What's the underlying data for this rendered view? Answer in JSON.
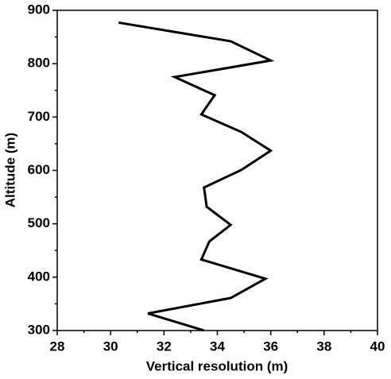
{
  "chart_data": {
    "type": "line",
    "x_label": "Vertical resolution (m)",
    "y_label": "Altitude (m)",
    "x": [
      30.3,
      34.5,
      36.0,
      32.4,
      33.9,
      33.4,
      34.9,
      36.0,
      34.9,
      33.5,
      33.6,
      34.5,
      33.7,
      33.4,
      35.8,
      34.5,
      31.4,
      33.5
    ],
    "y": [
      877,
      842,
      806,
      775,
      741,
      705,
      672,
      637,
      601,
      568,
      532,
      498,
      467,
      433,
      397,
      361,
      332,
      300
    ],
    "color": "#000000",
    "xlim": [
      28,
      40
    ],
    "xticks": [
      28,
      30,
      32,
      34,
      36,
      38,
      40
    ],
    "x_minor_ticks": [
      29,
      31,
      33,
      35,
      37,
      39
    ],
    "ylim": [
      300,
      900
    ],
    "yticks": [
      300,
      400,
      500,
      600,
      700,
      800,
      900
    ],
    "y_minor_ticks": [
      350,
      450,
      550,
      650,
      750,
      850
    ]
  }
}
